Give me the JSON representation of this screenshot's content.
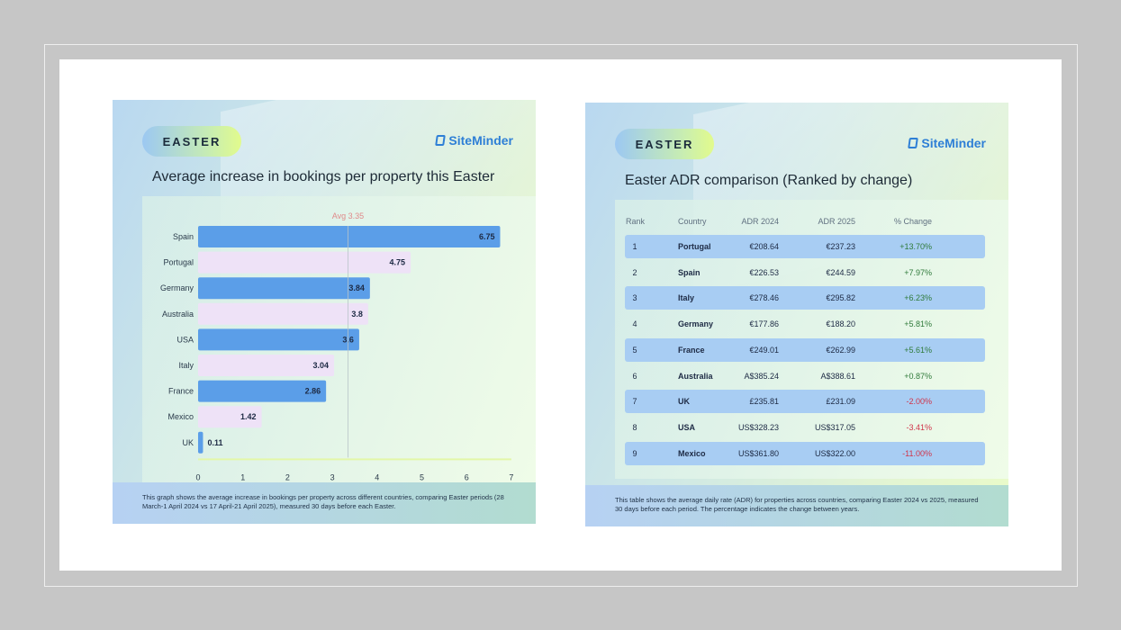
{
  "left_card": {
    "badge": "EASTER",
    "logo": "SiteMinder",
    "title": "Average increase in bookings per property this Easter",
    "footnote": "This graph shows the average increase in bookings per property across different countries, comparing Easter periods (28 March-1 April 2024 vs 17 April-21 April 2025), measured 30 days before each Easter."
  },
  "chart_data": {
    "type": "bar",
    "orientation": "horizontal",
    "categories": [
      "Spain",
      "Portugal",
      "Germany",
      "Australia",
      "USA",
      "Italy",
      "France",
      "Mexico",
      "UK"
    ],
    "values": [
      6.75,
      4.75,
      3.84,
      3.8,
      3.6,
      3.04,
      2.86,
      1.42,
      0.11
    ],
    "value_labels": [
      "6.75",
      "4.75",
      "3.84",
      "3.8",
      "3.6",
      "3.04",
      "2.86",
      "1.42",
      "0.11"
    ],
    "xlim": [
      0,
      7
    ],
    "xticks": [
      "0",
      "1",
      "2",
      "3",
      "4",
      "5",
      "6",
      "7"
    ],
    "average": {
      "value": 3.35,
      "label": "Avg 3.35"
    },
    "colors": {
      "primary": "#5b9ee8",
      "alternate": "#eee2f7",
      "avg": "#e08a8a"
    },
    "title": "Average increase in bookings per property this Easter",
    "xlabel": "",
    "ylabel": ""
  },
  "right_card": {
    "badge": "EASTER",
    "logo": "SiteMinder",
    "title": "Easter ADR comparison (Ranked by change)",
    "headers": [
      "Rank",
      "Country",
      "ADR 2024",
      "ADR 2025",
      "% Change"
    ],
    "rows": [
      [
        "1",
        "Portugal",
        "€208.64",
        "€237.23",
        "+13.70%"
      ],
      [
        "2",
        "Spain",
        "€226.53",
        "€244.59",
        "+7.97%"
      ],
      [
        "3",
        "Italy",
        "€278.46",
        "€295.82",
        "+6.23%"
      ],
      [
        "4",
        "Germany",
        "€177.86",
        "€188.20",
        "+5.81%"
      ],
      [
        "5",
        "France",
        "€249.01",
        "€262.99",
        "+5.61%"
      ],
      [
        "6",
        "Australia",
        "A$385.24",
        "A$388.61",
        "+0.87%"
      ],
      [
        "7",
        "UK",
        "£235.81",
        "£231.09",
        "-2.00%"
      ],
      [
        "8",
        "USA",
        "US$328.23",
        "US$317.05",
        "-3.41%"
      ],
      [
        "9",
        "Mexico",
        "US$361.80",
        "US$322.00",
        "-11.00%"
      ]
    ],
    "colors": {
      "positive": "#2f7a3a",
      "negative": "#d0344a",
      "highlight": "#a8cdf3"
    },
    "footnote": "This table shows the average daily rate (ADR) for properties across countries, comparing Easter 2024 vs 2025, measured 30 days before each period. The percentage indicates the change between years."
  }
}
